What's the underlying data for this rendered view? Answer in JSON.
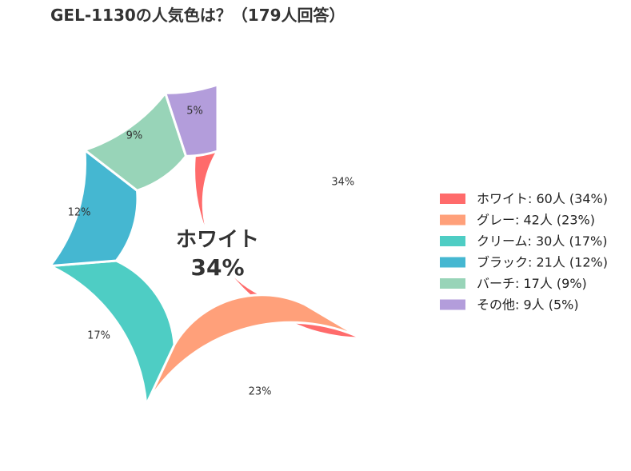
{
  "chart_data": {
    "type": "pie",
    "title": "GEL-1130の人気色は？（179人回答）",
    "categories": [
      "ホワイト",
      "グレー",
      "クリーム",
      "ブラック",
      "バーチ",
      "その他"
    ],
    "values": [
      60,
      42,
      30,
      21,
      17,
      9
    ],
    "percent_labels": [
      "34%",
      "23%",
      "17%",
      "12%",
      "9%",
      "5%"
    ],
    "legend_labels": [
      "ホワイト:  60人 (34%)",
      "グレー:  42人 (23%)",
      "クリーム:  30人 (17%)",
      "ブラック:  21人 (12%)",
      "バーチ:  17人 (9%)",
      "その他:  9人 (5%)"
    ],
    "colors": [
      "#ff6b6b",
      "#ffa07a",
      "#4ecdc4",
      "#45b7d1",
      "#98d4b8",
      "#b39ddb"
    ],
    "center_label": "ホワイト",
    "center_value": "34%",
    "legend_position": "right"
  }
}
